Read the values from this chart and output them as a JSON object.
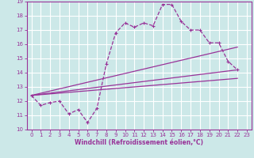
{
  "background_color": "#cce8e8",
  "grid_color": "#ffffff",
  "line_color": "#993399",
  "xlabel": "Windchill (Refroidissement éolien,°C)",
  "xlim": [
    -0.5,
    23.5
  ],
  "ylim": [
    10,
    19
  ],
  "yticks": [
    10,
    11,
    12,
    13,
    14,
    15,
    16,
    17,
    18,
    19
  ],
  "xticks": [
    0,
    1,
    2,
    3,
    4,
    5,
    6,
    7,
    8,
    9,
    10,
    11,
    12,
    13,
    14,
    15,
    16,
    17,
    18,
    19,
    20,
    21,
    22,
    23
  ],
  "line1_x": [
    0,
    1,
    2,
    3,
    4,
    5,
    6,
    7,
    8,
    9,
    10,
    11,
    12,
    13,
    14,
    15,
    16,
    17,
    18,
    19,
    20,
    21,
    22
  ],
  "line1_y": [
    12.4,
    11.7,
    11.9,
    12.0,
    11.1,
    11.4,
    10.5,
    11.5,
    14.6,
    16.8,
    17.5,
    17.2,
    17.5,
    17.3,
    18.8,
    18.8,
    17.6,
    17.0,
    17.0,
    16.1,
    16.1,
    14.8,
    14.2
  ],
  "line2_x": [
    0,
    22
  ],
  "line2_y": [
    12.4,
    14.2
  ],
  "line3_x": [
    0,
    22
  ],
  "line3_y": [
    12.4,
    15.8
  ],
  "line4_x": [
    0,
    22
  ],
  "line4_y": [
    12.4,
    13.6
  ]
}
